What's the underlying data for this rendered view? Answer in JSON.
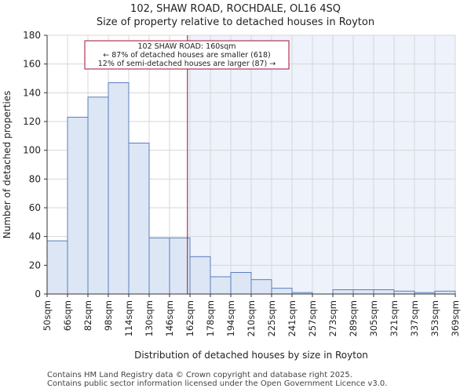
{
  "header": {
    "title": "102, SHAW ROAD, ROCHDALE, OL16 4SQ",
    "subtitle": "Size of property relative to detached houses in Royton"
  },
  "chart_data": {
    "type": "bar",
    "xlabel": "Distribution of detached houses by size in Royton",
    "ylabel": "Number of detached properties",
    "ylim": [
      0,
      180
    ],
    "yticks": [
      0,
      20,
      40,
      60,
      80,
      100,
      120,
      140,
      160,
      180
    ],
    "bin_edges": [
      50,
      66,
      82,
      98,
      114,
      130,
      146,
      162,
      178,
      194,
      210,
      225,
      241,
      257,
      273,
      289,
      305,
      321,
      337,
      353,
      369
    ],
    "tick_labels": [
      "50sqm",
      "66sqm",
      "82sqm",
      "98sqm",
      "114sqm",
      "130sqm",
      "146sqm",
      "162sqm",
      "178sqm",
      "194sqm",
      "210sqm",
      "225sqm",
      "241sqm",
      "257sqm",
      "273sqm",
      "289sqm",
      "305sqm",
      "321sqm",
      "337sqm",
      "353sqm",
      "369sqm"
    ],
    "values": [
      37,
      123,
      137,
      147,
      105,
      39,
      39,
      26,
      12,
      15,
      10,
      4,
      1,
      0,
      3,
      3,
      3,
      2,
      1,
      2
    ],
    "marker": {
      "value": 160,
      "label_line1": "102 SHAW ROAD: 160sqm",
      "label_line2": "← 87% of detached houses are smaller (618)",
      "label_line3": "12% of semi-detached houses are larger (87) →"
    },
    "colors": {
      "bar_fill": "#dce6f5",
      "bar_stroke": "#5b7fbd",
      "marker_line": "#a01030",
      "annotation_border": "#a01030",
      "highlight_bg": "#eef2fb"
    }
  },
  "footer": {
    "line1": "Contains HM Land Registry data © Crown copyright and database right 2025.",
    "line2": "Contains public sector information licensed under the Open Government Licence v3.0."
  }
}
